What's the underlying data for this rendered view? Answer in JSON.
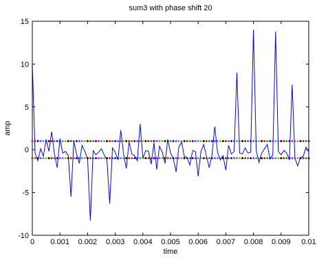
{
  "chart_data": {
    "type": "line",
    "title": "sum3 with phase shift 20",
    "xlabel": "time",
    "ylabel": "amp",
    "xlim": [
      0,
      0.01
    ],
    "ylim": [
      -10,
      15
    ],
    "grid": false,
    "xticks": [
      0,
      0.001,
      0.002,
      0.003,
      0.004,
      0.005,
      0.006,
      0.007,
      0.008,
      0.009,
      0.01
    ],
    "xtick_labels": [
      "0",
      "0.001",
      "0.002",
      "0.003",
      "0.004",
      "0.005",
      "0.006",
      "0.007",
      "0.008",
      "0.009",
      "0.01"
    ],
    "yticks": [
      -10,
      -5,
      0,
      5,
      10,
      15
    ],
    "ytick_labels": [
      "-10",
      "-5",
      "0",
      "5",
      "10",
      "15"
    ],
    "line_color": "#0000ff",
    "dot_colors": [
      "#ff0000",
      "#00aa00",
      "#0000ff",
      "#ff00ff",
      "#00bbbb",
      "#aaaa00",
      "#000000"
    ],
    "series": [
      {
        "style": "line",
        "x": [
          0,
          0.0001,
          0.0002,
          0.0003,
          0.0004,
          0.0005,
          0.0006,
          0.0007,
          0.0008,
          0.0009,
          0.001,
          0.0011,
          0.0012,
          0.0013,
          0.0014,
          0.0015,
          0.0016,
          0.0017,
          0.0018,
          0.0019,
          0.002,
          0.0021,
          0.0022,
          0.0023,
          0.0024,
          0.0025,
          0.0026,
          0.0027,
          0.0028,
          0.0029,
          0.003,
          0.0031,
          0.0032,
          0.0033,
          0.0034,
          0.0035,
          0.0036,
          0.0037,
          0.0038,
          0.0039,
          0.004,
          0.0041,
          0.0042,
          0.0043,
          0.0044,
          0.0045,
          0.0046,
          0.0047,
          0.0048,
          0.0049,
          0.005,
          0.0051,
          0.0052,
          0.0053,
          0.0054,
          0.0055,
          0.0056,
          0.0057,
          0.0058,
          0.0059,
          0.006,
          0.0061,
          0.0062,
          0.0063,
          0.0064,
          0.0065,
          0.0066,
          0.0067,
          0.0068,
          0.0069,
          0.007,
          0.0071,
          0.0072,
          0.0073,
          0.0074,
          0.0075,
          0.0076,
          0.0077,
          0.0078,
          0.0079,
          0.008,
          0.0081,
          0.0082,
          0.0083,
          0.0084,
          0.0085,
          0.0086,
          0.0087,
          0.0088,
          0.0089,
          0.009,
          0.0091,
          0.0092,
          0.0093,
          0.0094,
          0.0095,
          0.0096,
          0.0097,
          0.0098,
          0.0099,
          0.01
        ],
        "y": [
          10.2,
          -0.4,
          -1.3,
          0.1,
          -0.8,
          1.2,
          -0.2,
          2.1,
          -0.5,
          -2.1,
          1.3,
          -0.4,
          -0.2,
          -0.7,
          -5.5,
          1.0,
          -0.5,
          -1.6,
          0.5,
          -0.2,
          -1.1,
          -8.3,
          -0.1,
          -0.6,
          -0.3,
          0.1,
          -0.6,
          -1.2,
          -6.3,
          0.2,
          -0.3,
          -1.2,
          2.3,
          -0.5,
          -2.2,
          0.9,
          -0.5,
          -0.7,
          -1.3,
          3.0,
          -1.0,
          -0.1,
          -0.2,
          -1.7,
          0.8,
          -2.3,
          0.4,
          -0.3,
          -1.6,
          1.2,
          -0.4,
          -1.0,
          -2.6,
          0.3,
          0.9,
          -0.8,
          -0.9,
          -1.8,
          -0.1,
          -0.2,
          -3.1,
          -0.2,
          0.6,
          -0.8,
          -2.1,
          -0.6,
          2.7,
          -0.3,
          -1.2,
          -0.7,
          -2.4,
          0.5,
          -0.5,
          -0.2,
          9.0,
          -0.4,
          -0.5,
          0.2,
          -0.4,
          -0.3,
          14.0,
          -0.1,
          -1.5,
          -0.4,
          0.1,
          0.6,
          -1.1,
          -0.6,
          13.8,
          -0.2,
          -0.6,
          -0.1,
          -0.4,
          -1.2,
          7.6,
          -1.0,
          -1.9,
          -0.9,
          -0.8,
          0.3,
          -0.3
        ]
      },
      {
        "style": "dots",
        "constant": 1,
        "x_start": 0,
        "x_step": 0.0001,
        "count": 101
      },
      {
        "style": "dots",
        "constant": -1,
        "x_start": 0,
        "x_step": 0.0001,
        "count": 101
      }
    ]
  }
}
